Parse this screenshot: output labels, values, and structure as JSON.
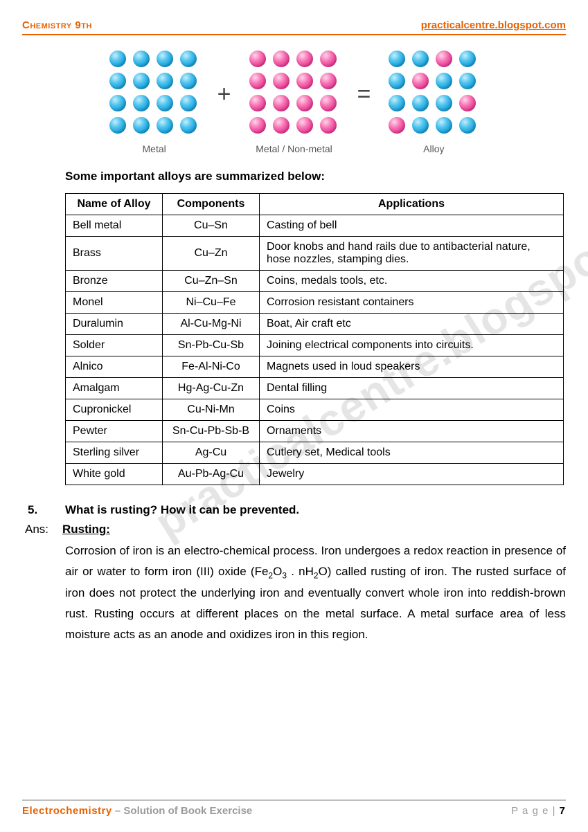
{
  "header": {
    "left": "Chemistry 9th",
    "right": "practicalcentre.blogspot.com"
  },
  "diagram": {
    "labels": {
      "metal": "Metal",
      "mix": "Metal / Non-metal",
      "alloy": "Alloy"
    },
    "ops": {
      "plus": "+",
      "eq": "="
    },
    "colors": {
      "blue": "#1da2db",
      "pink": "#e63b93"
    },
    "cols": 4,
    "rows": 4,
    "alloy_pattern": [
      [
        "b",
        "b",
        "p",
        "b"
      ],
      [
        "b",
        "p",
        "b",
        "b"
      ],
      [
        "b",
        "b",
        "b",
        "p"
      ],
      [
        "p",
        "b",
        "b",
        "b"
      ]
    ]
  },
  "section_heading": "Some important alloys are summarized below:",
  "table": {
    "columns": [
      "Name of Alloy",
      "Components",
      "Applications"
    ],
    "rows": [
      [
        "Bell metal",
        "Cu–Sn",
        "Casting of bell"
      ],
      [
        "Brass",
        "Cu–Zn",
        "Door knobs and hand rails due to antibacterial nature, hose nozzles, stamping dies."
      ],
      [
        "Bronze",
        "Cu–Zn–Sn",
        "Coins, medals tools, etc."
      ],
      [
        "Monel",
        "Ni–Cu–Fe",
        "Corrosion resistant containers"
      ],
      [
        "Duralumin",
        "Al-Cu-Mg-Ni",
        "Boat, Air craft etc"
      ],
      [
        "Solder",
        "Sn-Pb-Cu-Sb",
        "Joining electrical components into circuits."
      ],
      [
        "Alnico",
        "Fe-Al-Ni-Co",
        "Magnets used in loud speakers"
      ],
      [
        "Amalgam",
        "Hg-Ag-Cu-Zn",
        "Dental filling"
      ],
      [
        "Cupronickel",
        "Cu-Ni-Mn",
        "Coins"
      ],
      [
        "Pewter",
        "Sn-Cu-Pb-Sb-B",
        "Ornaments"
      ],
      [
        "Sterling silver",
        "Ag-Cu",
        "Cutlery set, Medical tools"
      ],
      [
        "White gold",
        "Au-Pb-Ag-Cu",
        "Jewelry"
      ]
    ]
  },
  "question": {
    "num": "5.",
    "text": "What is rusting? How it can be prevented."
  },
  "answer": {
    "label": "Ans:",
    "heading": "Rusting",
    "body_prefix": "Corrosion of iron is an electro-chemical process. Iron undergoes a redox reaction in presence of air or water to form iron (III) oxide (Fe",
    "formula_mid": " . nH",
    "body_suffix": "O) called rusting of iron. The rusted surface of iron does not protect the underlying iron and eventually convert whole iron into reddish-brown rust. Rusting occurs at different places on the metal surface. A metal surface area of less moisture acts as an anode and oxidizes iron in this region."
  },
  "footer": {
    "topic": "Electrochemistry",
    "subtitle": " – Solution of Book Exercise",
    "page_label": "P a g e  | ",
    "page_num": "7"
  },
  "watermark": "practicalcentre.blogspot.com"
}
